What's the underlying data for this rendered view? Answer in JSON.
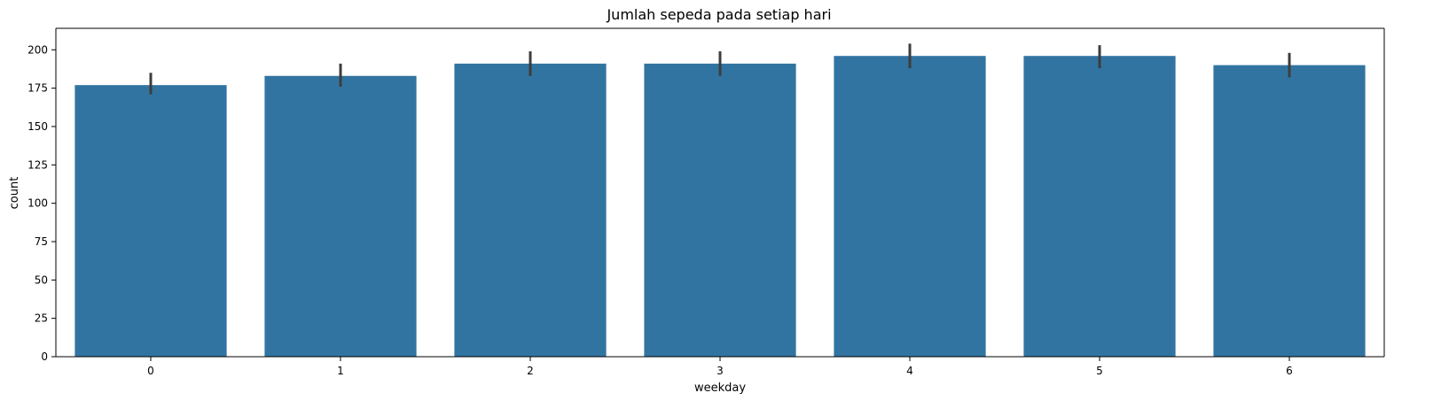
{
  "chart_data": {
    "type": "bar",
    "title": "Jumlah sepeda pada setiap hari",
    "xlabel": "weekday",
    "ylabel": "count",
    "categories": [
      "0",
      "1",
      "2",
      "3",
      "4",
      "5",
      "6"
    ],
    "values": [
      177,
      183,
      191,
      191,
      196,
      196,
      190
    ],
    "error_bars": [
      [
        171,
        185
      ],
      [
        176,
        191
      ],
      [
        183,
        199
      ],
      [
        183,
        199
      ],
      [
        188,
        204
      ],
      [
        188,
        203
      ],
      [
        182,
        198
      ]
    ],
    "yticks": [
      0,
      25,
      50,
      75,
      100,
      125,
      150,
      175,
      200
    ],
    "ylim": [
      0,
      214
    ],
    "grid": false,
    "legend": "none",
    "colors": {
      "bar": "#3274a1",
      "error_bar": "#3d3d3d"
    }
  }
}
